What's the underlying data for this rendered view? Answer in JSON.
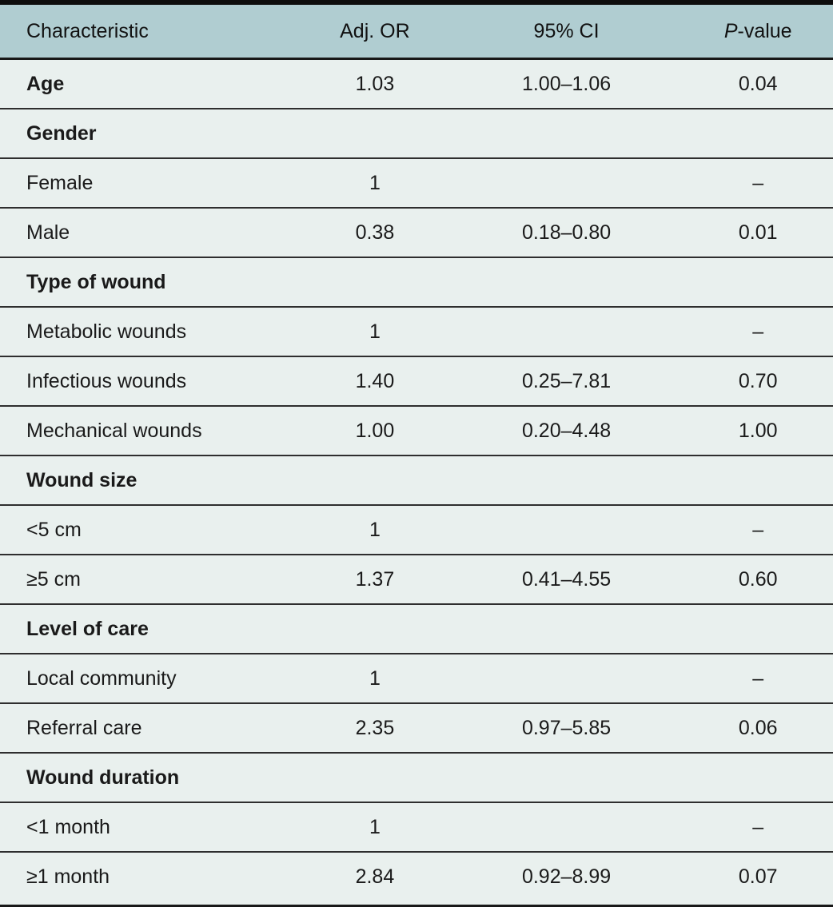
{
  "table": {
    "header": {
      "characteristic": "Characteristic",
      "adj_or": "Adj. OR",
      "ci": "95% CI",
      "p_italic": "P",
      "p_rest": "-value"
    },
    "colors": {
      "header_bg": "#b0cdd1",
      "body_bg": "#e9f0ee",
      "heavy_rule": "#0d0d0d",
      "row_rule": "#2e2e2e",
      "text": "#1a1a1a"
    },
    "rows": [
      {
        "label": "Age",
        "bold": true,
        "or": "1.03",
        "ci": "1.00–1.06",
        "p": "0.04"
      },
      {
        "label": "Gender",
        "bold": true,
        "or": "",
        "ci": "",
        "p": ""
      },
      {
        "label": "Female",
        "bold": false,
        "or": "1",
        "ci": "",
        "p": "–"
      },
      {
        "label": "Male",
        "bold": false,
        "or": "0.38",
        "ci": "0.18–0.80",
        "p": "0.01"
      },
      {
        "label": "Type of wound",
        "bold": true,
        "or": "",
        "ci": "",
        "p": ""
      },
      {
        "label": "Metabolic wounds",
        "bold": false,
        "or": "1",
        "ci": "",
        "p": "–"
      },
      {
        "label": "Infectious wounds",
        "bold": false,
        "or": "1.40",
        "ci": "0.25–7.81",
        "p": "0.70"
      },
      {
        "label": "Mechanical wounds",
        "bold": false,
        "or": "1.00",
        "ci": "0.20–4.48",
        "p": "1.00"
      },
      {
        "label": "Wound size",
        "bold": true,
        "or": "",
        "ci": "",
        "p": ""
      },
      {
        "label": "<5 cm",
        "bold": false,
        "or": "1",
        "ci": "",
        "p": "–"
      },
      {
        "label": "≥5 cm",
        "bold": false,
        "or": "1.37",
        "ci": "0.41–4.55",
        "p": "0.60"
      },
      {
        "label": "Level of care",
        "bold": true,
        "or": "",
        "ci": "",
        "p": ""
      },
      {
        "label": "Local community",
        "bold": false,
        "or": "1",
        "ci": "",
        "p": "–"
      },
      {
        "label": "Referral care",
        "bold": false,
        "or": "2.35",
        "ci": "0.97–5.85",
        "p": "0.06"
      },
      {
        "label": "Wound duration",
        "bold": true,
        "or": "",
        "ci": "",
        "p": ""
      },
      {
        "label": "<1 month",
        "bold": false,
        "or": "1",
        "ci": "",
        "p": "–"
      },
      {
        "label": "≥1 month",
        "bold": false,
        "or": "2.84",
        "ci": "0.92–8.99",
        "p": "0.07"
      }
    ]
  }
}
